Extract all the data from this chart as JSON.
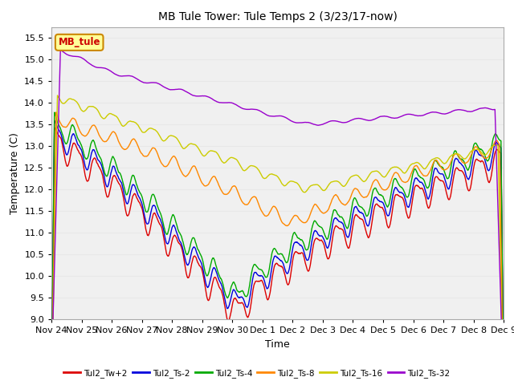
{
  "title": "MB Tule Tower: Tule Temps 2 (3/23/17-now)",
  "xlabel": "Time",
  "ylabel": "Temperature (C)",
  "ylim": [
    9.0,
    15.75
  ],
  "yticks": [
    9.0,
    9.5,
    10.0,
    10.5,
    11.0,
    11.5,
    12.0,
    12.5,
    13.0,
    13.5,
    14.0,
    14.5,
    15.0,
    15.5
  ],
  "xtick_labels": [
    "Nov 24",
    "Nov 25",
    "Nov 26",
    "Nov 27",
    "Nov 28",
    "Nov 29",
    "Nov 30",
    "Dec 1",
    "Dec 2",
    "Dec 3",
    "Dec 4",
    "Dec 5",
    "Dec 6",
    "Dec 7",
    "Dec 8",
    "Dec 9"
  ],
  "legend_label": "MB_tule",
  "legend_box_color": "#ffff99",
  "legend_box_edge": "#cc8800",
  "series_labels": [
    "Tul2_Tw+2",
    "Tul2_Ts-2",
    "Tul2_Ts-4",
    "Tul2_Ts-8",
    "Tul2_Ts-16",
    "Tul2_Ts-32"
  ],
  "series_colors": [
    "#dd0000",
    "#0000dd",
    "#00aa00",
    "#ff8800",
    "#cccc00",
    "#9900cc"
  ],
  "background_color": "#ffffff",
  "plot_bg_color": "#f0f0f0",
  "grid_color": "#e8e8e8"
}
